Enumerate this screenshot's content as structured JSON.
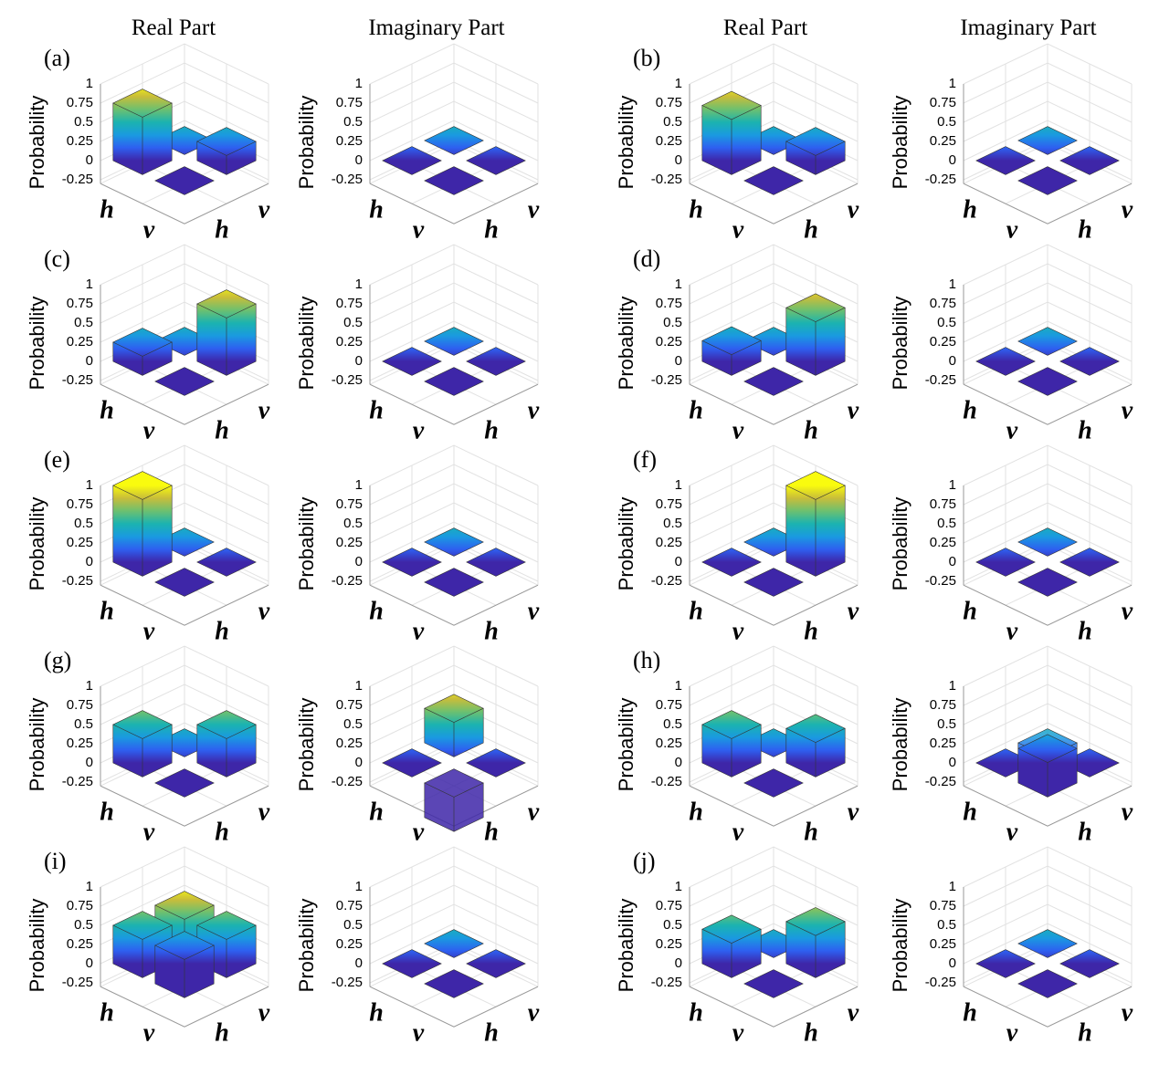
{
  "headers": [
    "Real Part",
    "Imaginary Part",
    "Real Part",
    "Imaginary Part"
  ],
  "chart_data": [
    {
      "type": "bar3d",
      "label": "(a)",
      "zlabel": "Probability",
      "rows": [
        "h",
        "v"
      ],
      "cols": [
        "h",
        "v"
      ],
      "values": [
        [
          0.75,
          0
        ],
        [
          0,
          0.25
        ]
      ],
      "zlim": [
        -0.3,
        1
      ],
      "zticks": [
        -0.25,
        0,
        0.25,
        0.5,
        0.75,
        1
      ],
      "colormap": "parula",
      "grid": true
    },
    {
      "type": "bar3d",
      "zlabel": "Probability",
      "rows": [
        "h",
        "v"
      ],
      "cols": [
        "h",
        "v"
      ],
      "values": [
        [
          0,
          0
        ],
        [
          0,
          0
        ]
      ],
      "zlim": [
        -0.3,
        1
      ],
      "zticks": [
        -0.25,
        0,
        0.25,
        0.5,
        0.75,
        1
      ],
      "colormap": "parula",
      "grid": true
    },
    {
      "type": "bar3d",
      "label": "(b)",
      "zlabel": "Probability",
      "rows": [
        "h",
        "v"
      ],
      "cols": [
        "h",
        "v"
      ],
      "values": [
        [
          0.72,
          0
        ],
        [
          0,
          0.25
        ]
      ],
      "zlim": [
        -0.3,
        1
      ],
      "zticks": [
        -0.25,
        0,
        0.25,
        0.5,
        0.75,
        1
      ],
      "colormap": "parula",
      "grid": true
    },
    {
      "type": "bar3d",
      "zlabel": "Probability",
      "rows": [
        "h",
        "v"
      ],
      "cols": [
        "h",
        "v"
      ],
      "values": [
        [
          0,
          0
        ],
        [
          0,
          0
        ]
      ],
      "zlim": [
        -0.3,
        1
      ],
      "zticks": [
        -0.25,
        0,
        0.25,
        0.5,
        0.75,
        1
      ],
      "colormap": "parula",
      "grid": true
    },
    {
      "type": "bar3d",
      "label": "(c)",
      "zlabel": "Probability",
      "rows": [
        "h",
        "v"
      ],
      "cols": [
        "h",
        "v"
      ],
      "values": [
        [
          0.25,
          0
        ],
        [
          0,
          0.75
        ]
      ],
      "zlim": [
        -0.3,
        1
      ],
      "zticks": [
        -0.25,
        0,
        0.25,
        0.5,
        0.75,
        1
      ],
      "colormap": "parula",
      "grid": true
    },
    {
      "type": "bar3d",
      "zlabel": "Probability",
      "rows": [
        "h",
        "v"
      ],
      "cols": [
        "h",
        "v"
      ],
      "values": [
        [
          0,
          0
        ],
        [
          0,
          0
        ]
      ],
      "zlim": [
        -0.3,
        1
      ],
      "zticks": [
        -0.25,
        0,
        0.25,
        0.5,
        0.75,
        1
      ],
      "colormap": "parula",
      "grid": true
    },
    {
      "type": "bar3d",
      "label": "(d)",
      "zlabel": "Probability",
      "rows": [
        "h",
        "v"
      ],
      "cols": [
        "h",
        "v"
      ],
      "values": [
        [
          0.27,
          0
        ],
        [
          0,
          0.7
        ]
      ],
      "zlim": [
        -0.3,
        1
      ],
      "zticks": [
        -0.25,
        0,
        0.25,
        0.5,
        0.75,
        1
      ],
      "colormap": "parula",
      "grid": true
    },
    {
      "type": "bar3d",
      "zlabel": "Probability",
      "rows": [
        "h",
        "v"
      ],
      "cols": [
        "h",
        "v"
      ],
      "values": [
        [
          0,
          0
        ],
        [
          0,
          0
        ]
      ],
      "zlim": [
        -0.3,
        1
      ],
      "zticks": [
        -0.25,
        0,
        0.25,
        0.5,
        0.75,
        1
      ],
      "colormap": "parula",
      "grid": true
    },
    {
      "type": "bar3d",
      "label": "(e)",
      "zlabel": "Probability",
      "rows": [
        "h",
        "v"
      ],
      "cols": [
        "h",
        "v"
      ],
      "values": [
        [
          1,
          0
        ],
        [
          0,
          0
        ]
      ],
      "zlim": [
        -0.3,
        1
      ],
      "zticks": [
        -0.25,
        0,
        0.25,
        0.5,
        0.75,
        1
      ],
      "colormap": "parula",
      "grid": true
    },
    {
      "type": "bar3d",
      "zlabel": "Probability",
      "rows": [
        "h",
        "v"
      ],
      "cols": [
        "h",
        "v"
      ],
      "values": [
        [
          0,
          0
        ],
        [
          0,
          0
        ]
      ],
      "zlim": [
        -0.3,
        1
      ],
      "zticks": [
        -0.25,
        0,
        0.25,
        0.5,
        0.75,
        1
      ],
      "colormap": "parula",
      "grid": true
    },
    {
      "type": "bar3d",
      "label": "(f)",
      "zlabel": "Probability",
      "rows": [
        "h",
        "v"
      ],
      "cols": [
        "h",
        "v"
      ],
      "values": [
        [
          0,
          0
        ],
        [
          0,
          1
        ]
      ],
      "zlim": [
        -0.3,
        1
      ],
      "zticks": [
        -0.25,
        0,
        0.25,
        0.5,
        0.75,
        1
      ],
      "colormap": "parula",
      "grid": true
    },
    {
      "type": "bar3d",
      "zlabel": "Probability",
      "rows": [
        "h",
        "v"
      ],
      "cols": [
        "h",
        "v"
      ],
      "values": [
        [
          0,
          0
        ],
        [
          0,
          0
        ]
      ],
      "zlim": [
        -0.3,
        1
      ],
      "zticks": [
        -0.25,
        0,
        0.25,
        0.5,
        0.75,
        1
      ],
      "colormap": "parula",
      "grid": true
    },
    {
      "type": "bar3d",
      "label": "(g)",
      "zlabel": "Probability",
      "rows": [
        "h",
        "v"
      ],
      "cols": [
        "h",
        "v"
      ],
      "values": [
        [
          0.5,
          0
        ],
        [
          0,
          0.5
        ]
      ],
      "zlim": [
        -0.3,
        1
      ],
      "zticks": [
        -0.25,
        0,
        0.25,
        0.5,
        0.75,
        1
      ],
      "colormap": "parula",
      "grid": true
    },
    {
      "type": "bar3d",
      "zlabel": "Probability",
      "rows": [
        "h",
        "v"
      ],
      "cols": [
        "h",
        "v"
      ],
      "values": [
        [
          0,
          0.45
        ],
        [
          -0.45,
          0
        ]
      ],
      "zlim": [
        -0.3,
        1
      ],
      "zticks": [
        -0.25,
        0,
        0.25,
        0.5,
        0.75,
        1
      ],
      "colormap": "parula",
      "grid": true
    },
    {
      "type": "bar3d",
      "label": "(h)",
      "zlabel": "Probability",
      "rows": [
        "h",
        "v"
      ],
      "cols": [
        "h",
        "v"
      ],
      "values": [
        [
          0.5,
          0
        ],
        [
          0,
          0.45
        ]
      ],
      "zlim": [
        -0.3,
        1
      ],
      "zticks": [
        -0.25,
        0,
        0.25,
        0.5,
        0.75,
        1
      ],
      "colormap": "parula",
      "grid": true
    },
    {
      "type": "bar3d",
      "zlabel": "Probability",
      "rows": [
        "h",
        "v"
      ],
      "cols": [
        "h",
        "v"
      ],
      "values": [
        [
          0,
          -0.45
        ],
        [
          0.45,
          0
        ]
      ],
      "zlim": [
        -0.3,
        1
      ],
      "zticks": [
        -0.25,
        0,
        0.25,
        0.5,
        0.75,
        1
      ],
      "colormap": "parula",
      "grid": true
    },
    {
      "type": "bar3d",
      "label": "(i)",
      "zlabel": "Probability",
      "rows": [
        "h",
        "v"
      ],
      "cols": [
        "h",
        "v"
      ],
      "values": [
        [
          0.5,
          0.5
        ],
        [
          0.5,
          0.5
        ]
      ],
      "zlim": [
        -0.3,
        1
      ],
      "zticks": [
        -0.25,
        0,
        0.25,
        0.5,
        0.75,
        1
      ],
      "colormap": "parula",
      "grid": true
    },
    {
      "type": "bar3d",
      "zlabel": "Probability",
      "rows": [
        "h",
        "v"
      ],
      "cols": [
        "h",
        "v"
      ],
      "values": [
        [
          0,
          0
        ],
        [
          0,
          0
        ]
      ],
      "zlim": [
        -0.3,
        1
      ],
      "zticks": [
        -0.25,
        0,
        0.25,
        0.5,
        0.75,
        1
      ],
      "colormap": "parula",
      "grid": true
    },
    {
      "type": "bar3d",
      "label": "(j)",
      "zlabel": "Probability",
      "rows": [
        "h",
        "v"
      ],
      "cols": [
        "h",
        "v"
      ],
      "values": [
        [
          0.45,
          0
        ],
        [
          0,
          0.55
        ]
      ],
      "zlim": [
        -0.3,
        1
      ],
      "zticks": [
        -0.25,
        0,
        0.25,
        0.5,
        0.75,
        1
      ],
      "colormap": "parula",
      "grid": true
    },
    {
      "type": "bar3d",
      "zlabel": "Probability",
      "rows": [
        "h",
        "v"
      ],
      "cols": [
        "h",
        "v"
      ],
      "values": [
        [
          0,
          0
        ],
        [
          0,
          0
        ]
      ],
      "zlim": [
        -0.3,
        1
      ],
      "zticks": [
        -0.25,
        0,
        0.25,
        0.5,
        0.75,
        1
      ],
      "colormap": "parula",
      "grid": true
    }
  ]
}
